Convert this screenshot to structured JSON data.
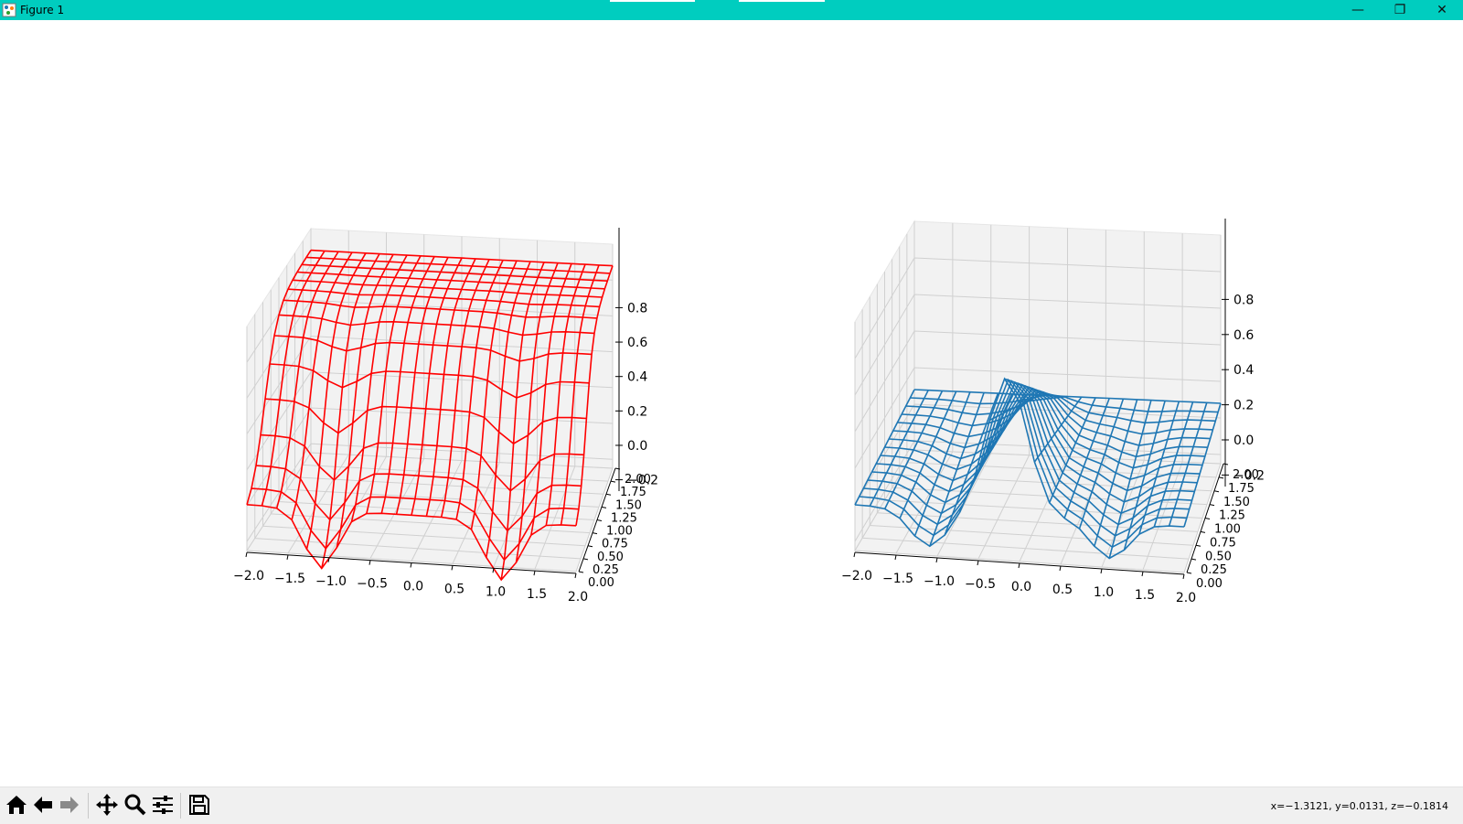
{
  "window": {
    "title": "Figure 1"
  },
  "titlebar": {
    "min_glyph": "—",
    "max_glyph": "❐",
    "close_glyph": "✕"
  },
  "status": {
    "coords": "x=−1.3121, y=0.0131, z=−0.1814"
  },
  "toolbar": {
    "icons": [
      "home-icon",
      "back-arrow-icon",
      "forward-arrow-icon",
      "pan-icon",
      "zoom-icon",
      "configure-subplots-icon",
      "save-icon"
    ]
  },
  "chart_data": [
    {
      "type": "wireframe",
      "color": "#ff0000",
      "x_ticks": [
        "−2.0",
        "−1.5",
        "−1.0",
        "−0.5",
        "0.0",
        "0.5",
        "1.0",
        "1.5",
        "2.0"
      ],
      "y_ticks": [
        "0.00",
        "0.25",
        "0.50",
        "0.75",
        "1.00",
        "1.25",
        "1.50",
        "1.75",
        "2.00"
      ],
      "z_ticks": [
        "−0.2",
        "0.0",
        "0.2",
        "0.4",
        "0.6",
        "0.8"
      ],
      "xlim": [
        -2,
        2
      ],
      "ylim": [
        0,
        2
      ],
      "zlim": [
        -0.25,
        1.0
      ],
      "grid": true
    },
    {
      "type": "wireframe",
      "color": "#1f77b4",
      "x_ticks": [
        "−2.0",
        "−1.5",
        "−1.0",
        "−0.5",
        "0.0",
        "0.5",
        "1.0",
        "1.5",
        "2.0"
      ],
      "y_ticks": [
        "0.00",
        "0.25",
        "0.50",
        "0.75",
        "1.00",
        "1.25",
        "1.50",
        "1.75",
        "2.00"
      ],
      "z_ticks": [
        "−0.2",
        "0.0",
        "0.2",
        "0.4",
        "0.6",
        "0.8"
      ],
      "xlim": [
        -2,
        2
      ],
      "ylim": [
        0,
        2
      ],
      "zlim": [
        -0.25,
        1.0
      ],
      "grid": true
    }
  ]
}
